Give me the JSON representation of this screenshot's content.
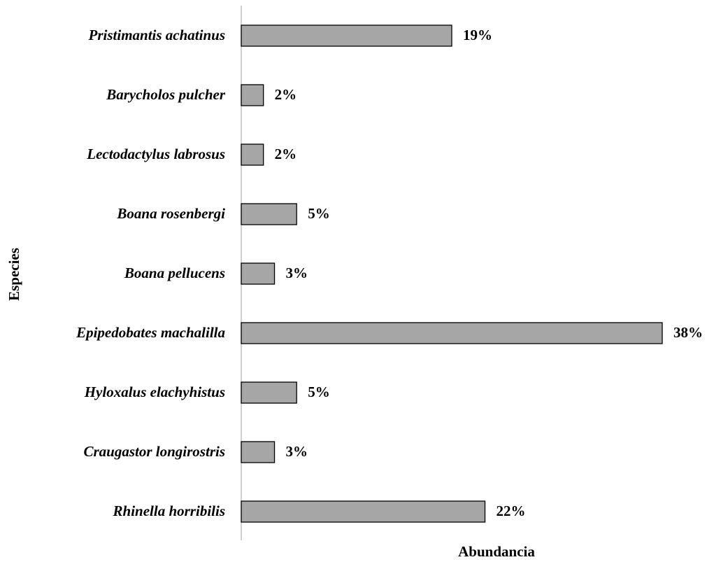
{
  "chart_data": {
    "type": "barh",
    "xlabel": "Abundancia",
    "ylabel": "Especies",
    "categories": [
      "Pristimantis achatinus",
      "Barycholos pulcher",
      "Lectodactylus  labrosus",
      "Boana rosenbergi",
      "Boana pellucens",
      "Epipedobates machalilla",
      "Hyloxalus elachyhistus",
      "Craugastor longirostris",
      "Rhinella horribilis"
    ],
    "values": [
      19,
      2,
      2,
      5,
      3,
      38,
      5,
      3,
      22
    ],
    "value_labels": [
      "19%",
      "2%",
      "2%",
      "5%",
      "3%",
      "38%",
      "5%",
      "3%",
      "22%"
    ],
    "color": "#a6a6a6",
    "xlim": [
      0,
      38
    ]
  }
}
